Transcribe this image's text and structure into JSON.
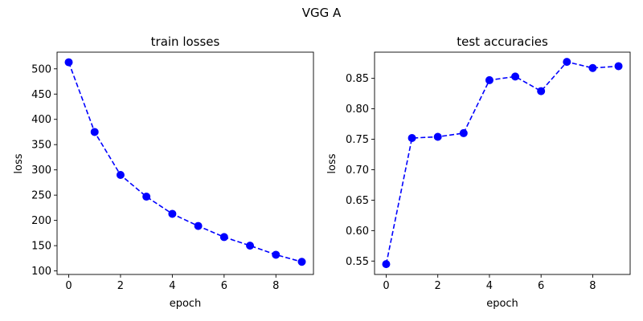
{
  "figure_title": "VGG A",
  "chart_data": [
    {
      "type": "line",
      "title": "train losses",
      "xlabel": "epoch",
      "ylabel": "loss",
      "x": [
        0,
        1,
        2,
        3,
        4,
        5,
        6,
        7,
        8,
        9
      ],
      "series": [
        {
          "values": [
            513,
            375,
            290,
            247,
            213,
            189,
            167,
            150,
            132,
            118
          ],
          "color": "#0000ff",
          "line_style": "dashed",
          "marker": "circle"
        }
      ],
      "xlim": [
        -0.45,
        9.45
      ],
      "ylim": [
        93,
        533
      ],
      "xticks": [
        0,
        2,
        4,
        6,
        8
      ],
      "xtick_labels": [
        "0",
        "2",
        "4",
        "6",
        "8"
      ],
      "yticks": [
        100,
        150,
        200,
        250,
        300,
        350,
        400,
        450,
        500
      ],
      "ytick_labels": [
        "100",
        "150",
        "200",
        "250",
        "300",
        "350",
        "400",
        "450",
        "500"
      ],
      "grid": false
    },
    {
      "type": "line",
      "title": "test accuracies",
      "xlabel": "epoch",
      "ylabel": "loss",
      "x": [
        0,
        1,
        2,
        3,
        4,
        5,
        6,
        7,
        8,
        9
      ],
      "series": [
        {
          "values": [
            0.545,
            0.752,
            0.754,
            0.76,
            0.847,
            0.853,
            0.829,
            0.877,
            0.867,
            0.87
          ],
          "color": "#0000ff",
          "line_style": "dashed",
          "marker": "circle"
        }
      ],
      "xlim": [
        -0.45,
        9.45
      ],
      "ylim": [
        0.528,
        0.893
      ],
      "xticks": [
        0,
        2,
        4,
        6,
        8
      ],
      "xtick_labels": [
        "0",
        "2",
        "4",
        "6",
        "8"
      ],
      "yticks": [
        0.55,
        0.6,
        0.65,
        0.7,
        0.75,
        0.8,
        0.85
      ],
      "ytick_labels": [
        "0.55",
        "0.60",
        "0.65",
        "0.70",
        "0.75",
        "0.80",
        "0.85"
      ],
      "grid": false
    }
  ]
}
